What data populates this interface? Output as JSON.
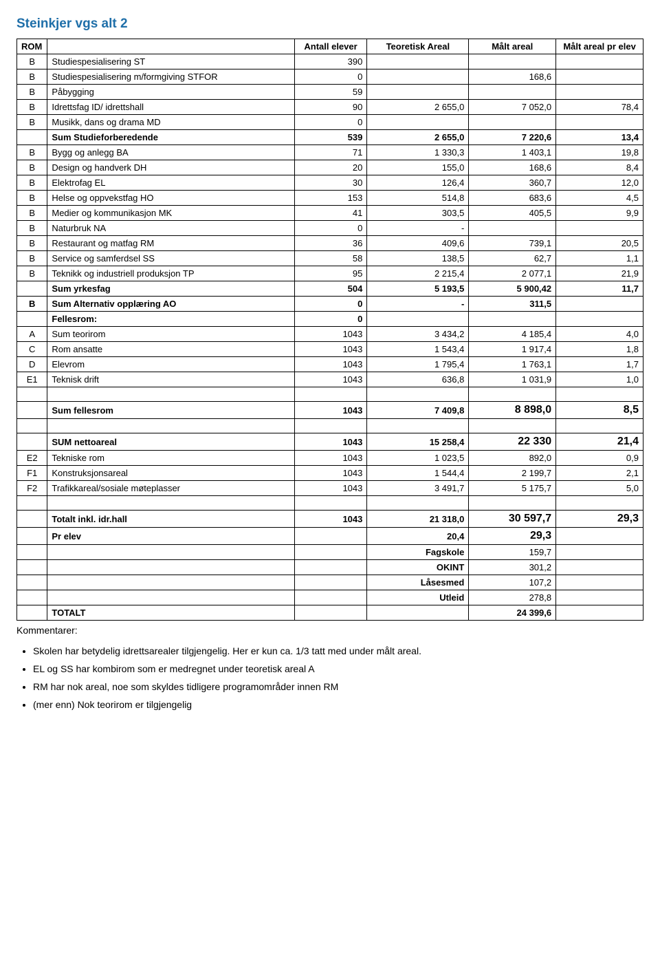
{
  "title": "Steinkjer vgs alt 2",
  "headers": {
    "rom": "ROM",
    "desc": "",
    "antall": "Antall elever",
    "teoretisk": "Teoretisk Areal",
    "malt": "Målt areal",
    "pr_elev": "Målt areal pr elev"
  },
  "rows": [
    {
      "c0": "B",
      "c1": "Studiespesialisering ST",
      "c2": "390",
      "c3": "",
      "c4": "",
      "c5": "",
      "bold": false
    },
    {
      "c0": "B",
      "c1": "Studiespesialisering m/formgiving STFOR",
      "c2": "0",
      "c3": "",
      "c4": "168,6",
      "c5": "",
      "bold": false
    },
    {
      "c0": "B",
      "c1": "Påbygging",
      "c2": "59",
      "c3": "",
      "c4": "",
      "c5": "",
      "bold": false
    },
    {
      "c0": "B",
      "c1": "Idrettsfag ID/ idrettshall",
      "c2": "90",
      "c3": "2 655,0",
      "c4": "7 052,0",
      "c5": "78,4",
      "bold": false
    },
    {
      "c0": "B",
      "c1": "Musikk, dans og drama MD",
      "c2": "0",
      "c3": "",
      "c4": "",
      "c5": "",
      "bold": false
    },
    {
      "c0": "",
      "c1": "Sum Studieforberedende",
      "c2": "539",
      "c3": "2 655,0",
      "c4": "7 220,6",
      "c5": "13,4",
      "bold": true
    },
    {
      "c0": "B",
      "c1": "Bygg og anlegg BA",
      "c2": "71",
      "c3": "1 330,3",
      "c4": "1 403,1",
      "c5": "19,8",
      "bold": false
    },
    {
      "c0": "B",
      "c1": "Design og handverk  DH",
      "c2": "20",
      "c3": "155,0",
      "c4": "168,6",
      "c5": "8,4",
      "bold": false
    },
    {
      "c0": "B",
      "c1": "Elektrofag  EL",
      "c2": "30",
      "c3": "126,4",
      "c4": "360,7",
      "c5": "12,0",
      "bold": false
    },
    {
      "c0": "B",
      "c1": "Helse og oppvekstfag HO",
      "c2": "153",
      "c3": "514,8",
      "c4": "683,6",
      "c5": "4,5",
      "bold": false
    },
    {
      "c0": "B",
      "c1": "Medier og kommunikasjon MK",
      "c2": "41",
      "c3": "303,5",
      "c4": "405,5",
      "c5": "9,9",
      "bold": false
    },
    {
      "c0": "B",
      "c1": "Naturbruk NA",
      "c2": "0",
      "c3": "-",
      "c4": "",
      "c5": "",
      "bold": false
    },
    {
      "c0": "B",
      "c1": "Restaurant og matfag RM",
      "c2": "36",
      "c3": "409,6",
      "c4": "739,1",
      "c5": "20,5",
      "bold": false
    },
    {
      "c0": "B",
      "c1": "Service og samferdsel SS",
      "c2": "58",
      "c3": "138,5",
      "c4": "62,7",
      "c5": "1,1",
      "bold": false
    },
    {
      "c0": "B",
      "c1": "Teknikk og industriell produksjon TP",
      "c2": "95",
      "c3": "2 215,4",
      "c4": "2 077,1",
      "c5": "21,9",
      "bold": false
    },
    {
      "c0": "",
      "c1": "Sum yrkesfag",
      "c2": "504",
      "c3": "5 193,5",
      "c4": "5 900,42",
      "c5": "11,7",
      "bold": true
    },
    {
      "c0": "B",
      "c1": "Sum Alternativ opplæring AO",
      "c2": "0",
      "c3": "-",
      "c4": "311,5",
      "c5": "",
      "bold": true
    },
    {
      "c0": "",
      "c1": "Fellesrom:",
      "c2": "0",
      "c3": "",
      "c4": "",
      "c5": "",
      "bold": true
    },
    {
      "c0": "A",
      "c1": "Sum teorirom",
      "c2": "1043",
      "c3": "3 434,2",
      "c4": "4 185,4",
      "c5": "4,0",
      "bold": false
    },
    {
      "c0": "C",
      "c1": "Rom ansatte",
      "c2": "1043",
      "c3": "1 543,4",
      "c4": "1 917,4",
      "c5": "1,8",
      "bold": false
    },
    {
      "c0": "D",
      "c1": "Elevrom",
      "c2": "1043",
      "c3": "1 795,4",
      "c4": "1 763,1",
      "c5": "1,7",
      "bold": false
    },
    {
      "c0": "E1",
      "c1": "Teknisk drift",
      "c2": "1043",
      "c3": "636,8",
      "c4": "1 031,9",
      "c5": "1,0",
      "bold": false
    }
  ],
  "sum_fellesrom": {
    "c0": "",
    "c1": "Sum fellesrom",
    "c2": "1043",
    "c3": "7 409,8",
    "c4": "8 898,0",
    "c5": "8,5"
  },
  "sum_netto": {
    "c0": "",
    "c1": "SUM nettoareal",
    "c2": "1043",
    "c3": "15 258,4",
    "c4": "22 330",
    "c5": "21,4"
  },
  "rows2": [
    {
      "c0": "E2",
      "c1": "Tekniske rom",
      "c2": "1043",
      "c3": "1 023,5",
      "c4": "892,0",
      "c5": "0,9",
      "bold": false
    },
    {
      "c0": "F1",
      "c1": "Konstruksjonsareal",
      "c2": "1043",
      "c3": "1 544,4",
      "c4": "2 199,7",
      "c5": "2,1",
      "bold": false
    },
    {
      "c0": "F2",
      "c1": "Trafikkareal/sosiale møteplasser",
      "c2": "1043",
      "c3": "3 491,7",
      "c4": "5 175,7",
      "c5": "5,0",
      "bold": false
    }
  ],
  "totalt_inkl": {
    "c0": "",
    "c1": "Totalt inkl. idr.hall",
    "c2": "1043",
    "c3": "21 318,0",
    "c4": "30 597,7",
    "c5": "29,3"
  },
  "pr_elev_row": {
    "c0": "",
    "c1": "Pr elev",
    "c2": "",
    "c3": "20,4",
    "c4": "29,3",
    "c5": ""
  },
  "bottom_rows": [
    {
      "label": "Fagskole",
      "val": "159,7"
    },
    {
      "label": "OKINT",
      "val": "301,2"
    },
    {
      "label": "Låsesmed",
      "val": "107,2"
    },
    {
      "label": "Utleid",
      "val": "278,8"
    }
  ],
  "totalt_row": {
    "c1": "TOTALT",
    "c4": "24 399,6"
  },
  "comments_label": "Kommentarer:",
  "comments": [
    "Skolen har betydelig idrettsarealer tilgjengelig.  Her er kun ca. 1/3 tatt med under målt areal.",
    "EL og SS har kombirom som er medregnet under teoretisk areal A",
    "RM har nok areal, noe som skyldes tidligere programområder innen RM",
    "(mer enn) Nok teorirom er tilgjengelig"
  ]
}
